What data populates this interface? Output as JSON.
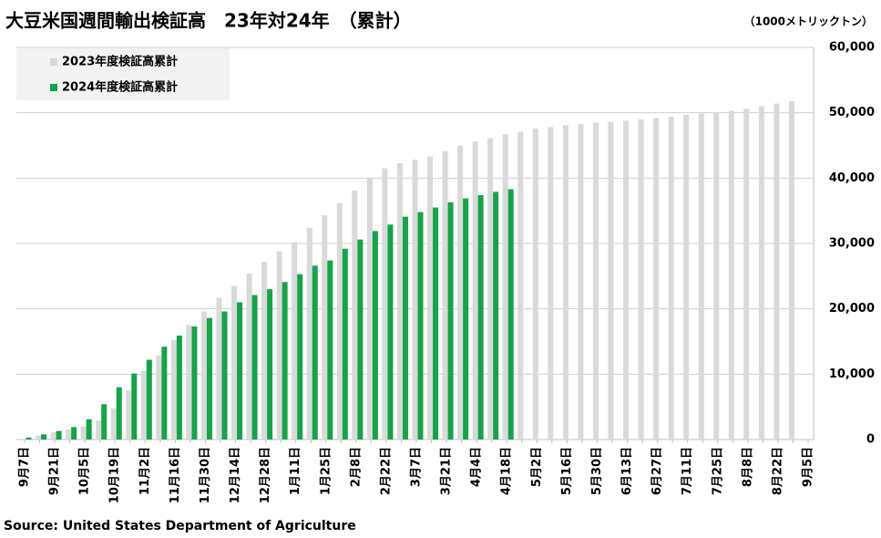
{
  "chart_data": {
    "type": "bar",
    "title": "大豆米国週間輸出検証高　23年対24年　（累計）",
    "y_axis_label": "（1000メトリックトン）",
    "source": "Source: United States Department of Agriculture",
    "categories": [
      "9月7日",
      null,
      "9月21日",
      null,
      "10月5日",
      null,
      "10月19日",
      null,
      "11月2日",
      null,
      "11月16日",
      null,
      "11月30日",
      null,
      "12月14日",
      null,
      "12月28日",
      null,
      "1月11日",
      null,
      "1月25日",
      null,
      "2月8日",
      null,
      "2月22日",
      null,
      "3月7日",
      null,
      "3月21日",
      null,
      "4月4日",
      null,
      "4月18日",
      null,
      "5月2日",
      null,
      "5月16日",
      null,
      "5月30日",
      null,
      "6月13日",
      null,
      "6月27日",
      null,
      "7月11日",
      null,
      "7月25日",
      null,
      "8月8日",
      null,
      "8月22日",
      null,
      "9月5日"
    ],
    "series": [
      {
        "name": "2023年度検証高累計",
        "color": "#d9d9d9",
        "values": [
          100,
          600,
          1100,
          1500,
          2000,
          2900,
          4800,
          7500,
          10500,
          12900,
          15200,
          17500,
          19600,
          21700,
          23500,
          25400,
          27200,
          28800,
          30200,
          32400,
          34300,
          36200,
          38100,
          40000,
          41500,
          42300,
          42800,
          43300,
          44100,
          45000,
          45600,
          46100,
          46700,
          47100,
          47600,
          47800,
          48100,
          48300,
          48500,
          48600,
          48800,
          49000,
          49200,
          49400,
          49700,
          49900,
          50100,
          50300,
          50600,
          51000,
          51400,
          51800,
          null
        ]
      },
      {
        "name": "2024年度検証高累計",
        "color": "#12a54a",
        "values": [
          300,
          800,
          1300,
          1900,
          3100,
          5400,
          8000,
          10100,
          12200,
          14200,
          15900,
          17300,
          18600,
          19600,
          21000,
          22100,
          23000,
          24100,
          25300,
          26600,
          27400,
          29200,
          30600,
          31900,
          32900,
          34100,
          34800,
          35500,
          36300,
          36900,
          37400,
          37900,
          38300,
          null,
          null,
          null,
          null,
          null,
          null,
          null,
          null,
          null,
          null,
          null,
          null,
          null,
          null,
          null,
          null,
          null,
          null,
          null,
          null
        ]
      }
    ],
    "ylim": [
      0,
      60000
    ],
    "yticks": [
      0,
      {
        "value": 10000,
        "label": "10,000"
      },
      {
        "value": 20000,
        "label": "20,000"
      },
      {
        "value": 30000,
        "label": "30,000"
      },
      {
        "value": 40000,
        "label": "40,000"
      },
      {
        "value": 50000,
        "label": "50,000"
      },
      {
        "value": 60000,
        "label": "60,000"
      }
    ],
    "grid": true,
    "legend": "top-left"
  }
}
